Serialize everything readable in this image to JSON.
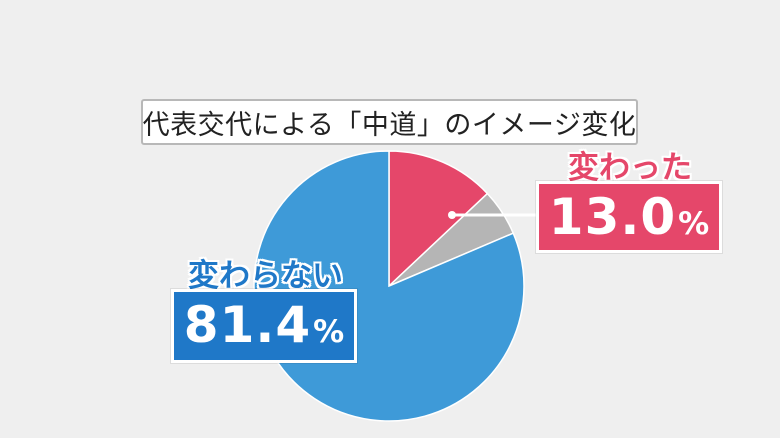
{
  "title": "代表交代による「中道」のイメージ変化",
  "chart_data": {
    "type": "pie",
    "title": "代表交代による「中道」のイメージ変化",
    "slices": [
      {
        "label": "変わった",
        "value": 13.0,
        "color": "#e5476a"
      },
      {
        "label": "",
        "value": 5.6,
        "color": "#b5b5b5"
      },
      {
        "label": "変わらない",
        "value": 81.4,
        "color": "#3e9ad8"
      }
    ],
    "start_angle_deg": 0,
    "direction": "clockwise"
  },
  "labels": {
    "changed_label": "変わった",
    "changed_value": "13.0",
    "unchanged_label": "変わらない",
    "unchanged_value": "81.4",
    "percent": "%"
  },
  "colors": {
    "background": "#efefef",
    "changed": "#e5476a",
    "other": "#b5b5b5",
    "unchanged_slice": "#3e9ad8",
    "unchanged_box": "#1f78c8"
  }
}
